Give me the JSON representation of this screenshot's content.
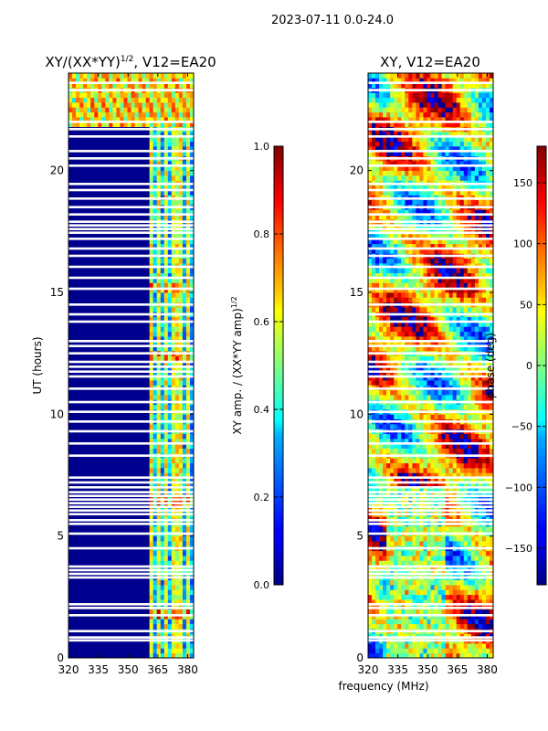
{
  "suptitle": "2023-07-11 0.0-24.0",
  "chart_data": [
    {
      "type": "heatmap",
      "title_main": "XY/(XX*YY)",
      "title_sup": "1/2",
      "title_suffix": ", V12=EA20",
      "xlabel": "",
      "ylabel": "UT (hours)",
      "xlim": [
        320,
        383
      ],
      "ylim": [
        0,
        24
      ],
      "xticks": [
        "320",
        "335",
        "350",
        "365",
        "380"
      ],
      "xtick_values": [
        320,
        335,
        350,
        365,
        380
      ],
      "yticks": [
        "0",
        "5",
        "10",
        "15",
        "20"
      ],
      "ytick_values": [
        0,
        5,
        10,
        15,
        20
      ],
      "colormap": "jet",
      "colorbar": {
        "label_main": "XY amp. / (XX*YY amp)",
        "label_sup": "1/2",
        "range": [
          0.0,
          1.0
        ],
        "ticks": [
          "0.0",
          "0.2",
          "0.4",
          "0.6",
          "0.8",
          "1.0"
        ],
        "tick_values": [
          0.0,
          0.2,
          0.4,
          0.6,
          0.8,
          1.0
        ]
      }
    },
    {
      "type": "heatmap",
      "title": "XY, V12=EA20",
      "xlabel": "frequency (MHz)",
      "ylabel": "",
      "xlim": [
        320,
        383
      ],
      "ylim": [
        0,
        24
      ],
      "xticks": [
        "320",
        "335",
        "350",
        "365",
        "380"
      ],
      "xtick_values": [
        320,
        335,
        350,
        365,
        380
      ],
      "yticks": [
        "0",
        "5",
        "10",
        "15",
        "20"
      ],
      "ytick_values": [
        0,
        5,
        10,
        15,
        20
      ],
      "colormap": "jet",
      "colorbar": {
        "label": "phase (deg)",
        "range": [
          -180,
          180
        ],
        "ticks": [
          "150",
          "100",
          "50",
          "0",
          "−50",
          "−100",
          "−150"
        ],
        "tick_values": [
          150,
          100,
          50,
          0,
          -50,
          -100,
          -150
        ]
      }
    }
  ],
  "flagged_hours": [
    0.72,
    0.84,
    1.1,
    1.75,
    2.05,
    2.2,
    3.3,
    3.45,
    3.6,
    3.75,
    4.5,
    5.1,
    5.5,
    5.65,
    5.9,
    6.05,
    6.2,
    6.35,
    6.5,
    6.65,
    6.8,
    7.0,
    7.2,
    7.4,
    8.3,
    8.8,
    9.3,
    9.7,
    10.1,
    10.5,
    11.05,
    11.55,
    11.75,
    11.95,
    12.15,
    12.5,
    12.8,
    13.0,
    13.8,
    14.1,
    14.5,
    15.15,
    15.6,
    16.05,
    16.5,
    16.8,
    17.2,
    17.45,
    17.6,
    17.75,
    17.9,
    18.2,
    18.5,
    18.85,
    19.2,
    19.45,
    20.2,
    20.5,
    20.8,
    21.4,
    21.7,
    22.0,
    23.3,
    23.6
  ],
  "band_channels_mhz": [
    362.5,
    366,
    369,
    372,
    374.5,
    377,
    379.5
  ]
}
